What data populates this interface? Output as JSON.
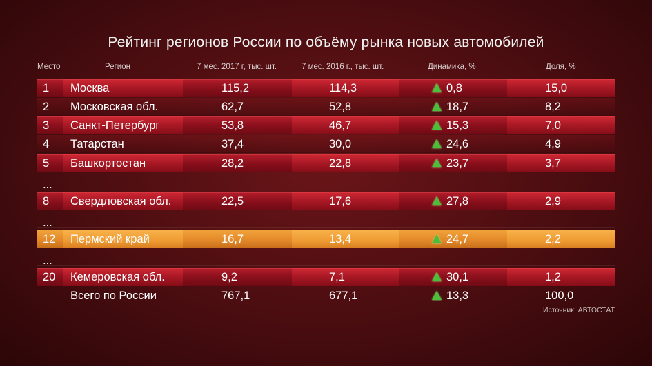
{
  "title": "Рейтинг регионов России по объёму рынка новых автомобилей",
  "headers": {
    "place": "Место",
    "region": "Регион",
    "y2017": "7 мес. 2017 г, тыс. шт.",
    "y2016": "7 мес. 2016 г., тыс. шт.",
    "dynamics": "Динамика, %",
    "share": "Доля, %"
  },
  "rows": [
    {
      "place": "1",
      "region": "Москва",
      "v2017": "115,2",
      "v2016": "114,3",
      "dyn": "0,8",
      "share": "15,0"
    },
    {
      "place": "2",
      "region": "Московская обл.",
      "v2017": "62,7",
      "v2016": "52,8",
      "dyn": "18,7",
      "share": "8,2"
    },
    {
      "place": "3",
      "region": "Санкт-Петербург",
      "v2017": "53,8",
      "v2016": "46,7",
      "dyn": "15,3",
      "share": "7,0"
    },
    {
      "place": "4",
      "region": "Татарстан",
      "v2017": "37,4",
      "v2016": "30,0",
      "dyn": "24,6",
      "share": "4,9"
    },
    {
      "place": "5",
      "region": "Башкортостан",
      "v2017": "28,2",
      "v2016": "22,8",
      "dyn": "23,7",
      "share": "3,7"
    },
    {
      "place": "8",
      "region": "Свердловская обл.",
      "v2017": "22,5",
      "v2016": "17,6",
      "dyn": "27,8",
      "share": "2,9"
    },
    {
      "place": "12",
      "region": "Пермский край",
      "v2017": "16,7",
      "v2016": "13,4",
      "dyn": "24,7",
      "share": "2,2"
    },
    {
      "place": "20",
      "region": "Кемеровская обл.",
      "v2017": "9,2",
      "v2016": "7,1",
      "dyn": "30,1",
      "share": "1,2"
    }
  ],
  "ellipsis": "...",
  "total": {
    "region": "Всего по России",
    "v2017": "767,1",
    "v2016": "677,1",
    "dyn": "13,3",
    "share": "100,0"
  },
  "source": "Источник: АВТОСТАТ",
  "colors": {
    "red_row": "#8a101c",
    "highlight_row": "#e3892a",
    "up_arrow": "#4cbf3a"
  },
  "icons": {
    "trend": "up-triangle-icon"
  }
}
